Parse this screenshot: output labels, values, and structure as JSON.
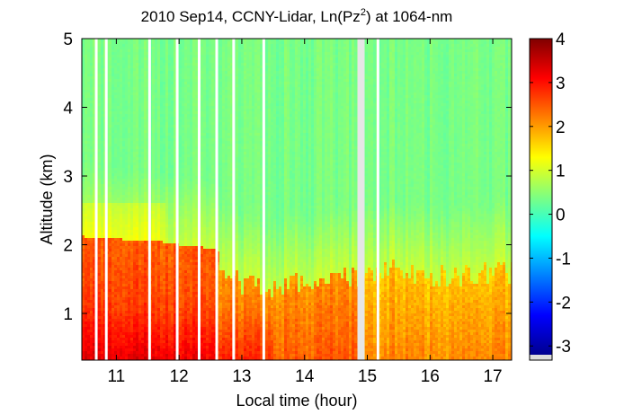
{
  "chart_data": {
    "type": "heatmap",
    "title": {
      "prefix": "2010 Sep14, CCNY-Lidar, Ln(Pz",
      "superscript": "2",
      "suffix": ") at 1064-nm"
    },
    "xlabel": "Local time (hour)",
    "ylabel": "Altitude (km)",
    "xlim": [
      10.45,
      17.3
    ],
    "ylim": [
      0.32,
      5.0
    ],
    "xticks": [
      "11",
      "12",
      "13",
      "14",
      "15",
      "16",
      "17"
    ],
    "yticks": [
      "1",
      "2",
      "3",
      "4",
      "5"
    ],
    "colorbar": {
      "clim": [
        -3.2,
        4.0
      ],
      "ticks": [
        "4",
        "3",
        "2",
        "1",
        "0",
        "-1",
        "-2",
        "-3"
      ],
      "colormap": "jet"
    },
    "data_gaps_hours": [
      10.68,
      10.84,
      11.53,
      11.97,
      12.32,
      12.6,
      12.87,
      13.35,
      14.9,
      15.17
    ],
    "boundary_layer_top_km": {
      "x": [
        10.45,
        11.0,
        11.5,
        12.0,
        12.5,
        13.0,
        13.5,
        14.0,
        14.5,
        14.9,
        15.2,
        15.5,
        16.0,
        16.5,
        17.0,
        17.3
      ],
      "y": [
        2.1,
        2.05,
        2.0,
        1.8,
        1.65,
        1.45,
        1.4,
        1.45,
        1.5,
        1.5,
        1.65,
        1.6,
        1.55,
        1.55,
        1.6,
        1.6
      ]
    },
    "residual_layer_top_km": {
      "x": [
        10.45,
        11.0,
        11.5,
        12.0,
        12.5,
        12.65
      ],
      "y": [
        2.12,
        2.08,
        2.07,
        2.0,
        1.95,
        1.9
      ]
    }
  }
}
